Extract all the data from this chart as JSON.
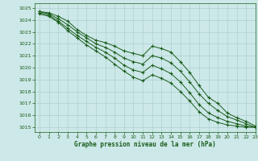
{
  "title": "Graphe pression niveau de la mer (hPa)",
  "bg_color": "#cce8e8",
  "line_color": "#1a5c1a",
  "grid_color": "#b0d0d0",
  "xlim": [
    -0.5,
    23
  ],
  "ylim": [
    1014.6,
    1025.4
  ],
  "yticks": [
    1015,
    1016,
    1017,
    1018,
    1019,
    1020,
    1021,
    1022,
    1023,
    1024,
    1025
  ],
  "xticks": [
    0,
    1,
    2,
    3,
    4,
    5,
    6,
    7,
    8,
    9,
    10,
    11,
    12,
    13,
    14,
    15,
    16,
    17,
    18,
    19,
    20,
    21,
    22,
    23
  ],
  "series": [
    [
      1024.7,
      1024.6,
      1024.3,
      1023.9,
      1023.2,
      1022.7,
      1022.3,
      1022.1,
      1021.8,
      1021.4,
      1021.2,
      1021.0,
      1021.8,
      1021.6,
      1021.3,
      1020.5,
      1019.6,
      1018.5,
      1017.5,
      1017.0,
      1016.2,
      1015.8,
      1015.5,
      1015.1
    ],
    [
      1024.7,
      1024.5,
      1024.1,
      1023.6,
      1023.0,
      1022.5,
      1022.0,
      1021.7,
      1021.3,
      1020.8,
      1020.5,
      1020.3,
      1021.0,
      1020.8,
      1020.4,
      1019.7,
      1018.8,
      1017.8,
      1017.0,
      1016.4,
      1015.9,
      1015.6,
      1015.3,
      1015.0
    ],
    [
      1024.6,
      1024.4,
      1023.9,
      1023.3,
      1022.7,
      1022.2,
      1021.7,
      1021.3,
      1020.8,
      1020.2,
      1019.8,
      1019.6,
      1020.2,
      1019.9,
      1019.5,
      1018.8,
      1017.9,
      1016.9,
      1016.2,
      1015.8,
      1015.5,
      1015.3,
      1015.1,
      1015.0
    ],
    [
      1024.5,
      1024.3,
      1023.8,
      1023.1,
      1022.5,
      1021.9,
      1021.4,
      1020.9,
      1020.3,
      1019.7,
      1019.2,
      1018.9,
      1019.4,
      1019.1,
      1018.7,
      1018.0,
      1017.2,
      1016.3,
      1015.7,
      1015.4,
      1015.2,
      1015.1,
      1015.0,
      1015.0
    ]
  ]
}
